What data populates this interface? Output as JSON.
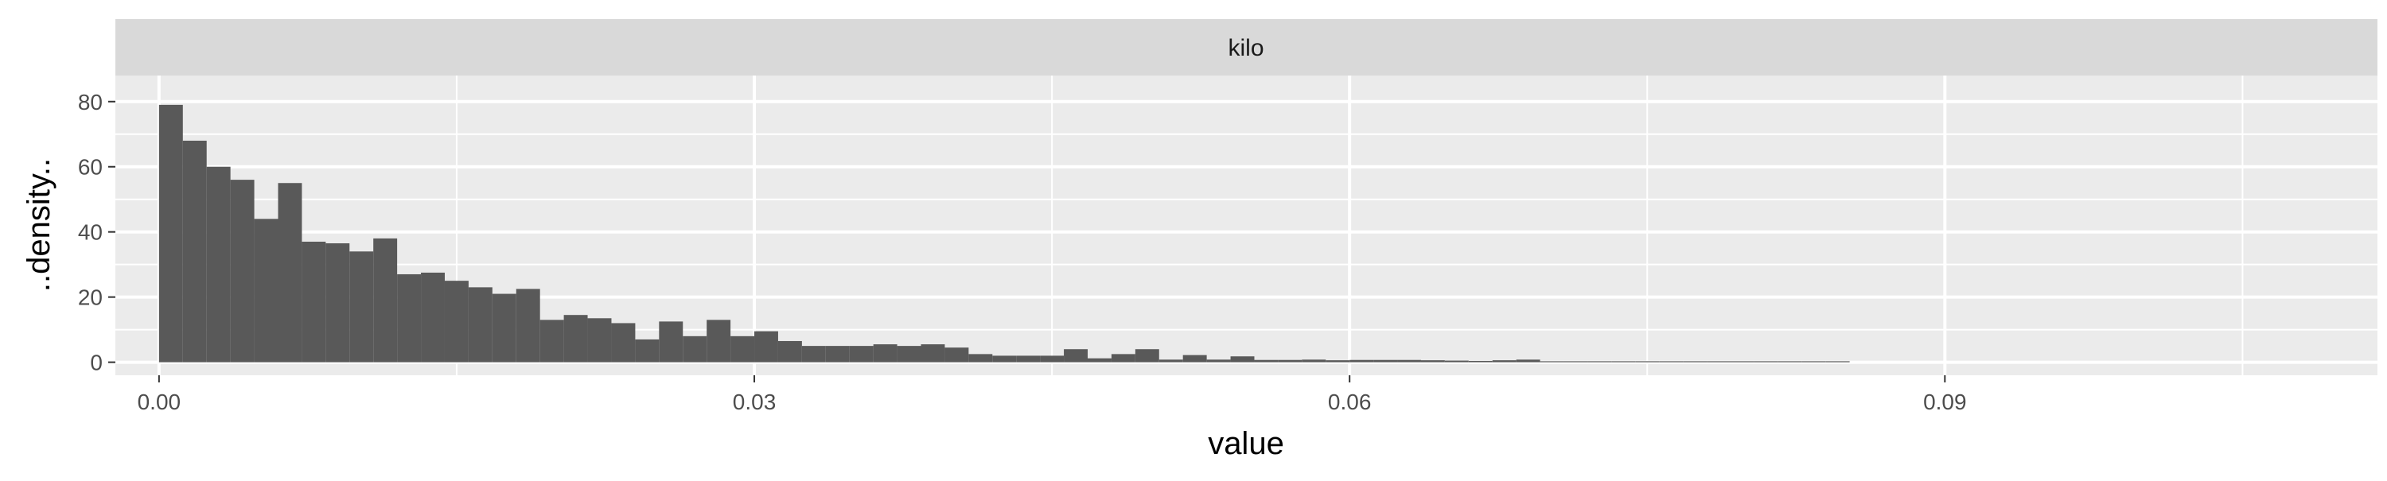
{
  "chart_data": {
    "type": "bar",
    "panel_title": "kilo",
    "xlabel": "value",
    "ylabel": "..density..",
    "xlim": [
      -0.0022,
      0.1118
    ],
    "ylim": [
      -4.0,
      88.0
    ],
    "x_ticks": [
      0.0,
      0.03,
      0.06,
      0.09
    ],
    "x_tick_labels": [
      "0.00",
      "0.03",
      "0.06",
      "0.09"
    ],
    "y_ticks": [
      0,
      20,
      40,
      60,
      80
    ],
    "y_tick_labels": [
      "0",
      "20",
      "40",
      "60",
      "80"
    ],
    "grid": true,
    "bin_width": 0.0012,
    "bin_start": 0.0,
    "values": [
      79,
      68,
      60,
      56,
      44,
      55,
      37,
      36.5,
      34,
      38,
      27,
      27.5,
      25,
      23,
      21,
      22.5,
      13,
      14.5,
      13.5,
      12,
      7,
      12.5,
      8,
      13,
      8,
      9.5,
      6.5,
      5,
      5,
      5,
      5.5,
      5,
      5.5,
      4.5,
      2.5,
      2,
      2,
      2,
      4,
      1.2,
      2.5,
      4,
      0.8,
      2.2,
      0.8,
      1.8,
      0.7,
      0.7,
      0.8,
      0.6,
      0.7,
      0.7,
      0.7,
      0.6,
      0.5,
      0.4,
      0.6,
      0.8,
      0.3,
      0.3,
      0.3,
      0.3,
      0.3,
      0.3,
      0.3,
      0.3,
      0.3,
      0.3,
      0.3,
      0.3,
      0.3,
      0,
      0,
      0,
      0,
      0,
      0,
      0,
      0,
      0,
      0,
      0,
      0,
      0,
      0,
      0,
      0,
      0,
      0,
      0,
      0,
      0
    ]
  },
  "colors": {
    "bar_fill": "#595959",
    "panel_background": "#ebebeb",
    "strip_background": "#d9d9d9",
    "grid": "#ffffff",
    "axis_text": "#4d4d4d",
    "title_text": "#000000",
    "strip_text": "#1a1a1a"
  }
}
